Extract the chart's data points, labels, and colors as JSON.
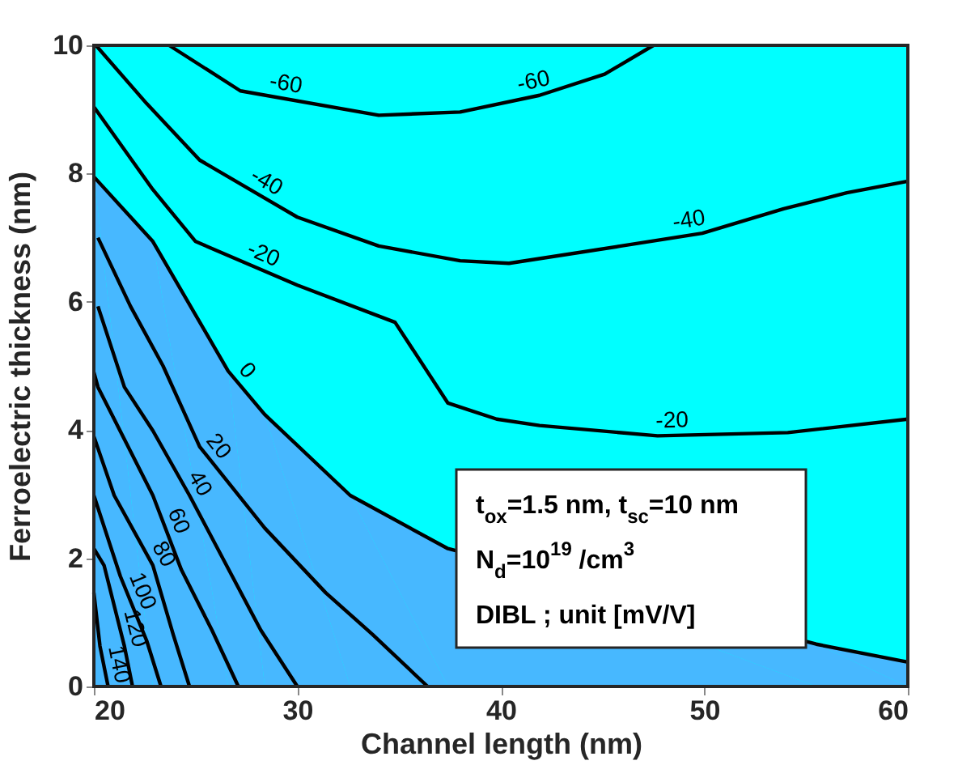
{
  "chart_data": {
    "type": "line",
    "xlabel": "Channel length (nm)",
    "ylabel": "Ferroelectric thickness (nm)",
    "xlim": [
      20,
      60
    ],
    "ylim": [
      0,
      10
    ],
    "xticks": [
      20,
      30,
      40,
      50,
      60
    ],
    "yticks": [
      0,
      2,
      4,
      6,
      8,
      10
    ],
    "marker": "none",
    "line_style": "solid",
    "bands": [
      {
        "axis": "y",
        "from": 0,
        "to": 10,
        "color": "#00ffff"
      }
    ],
    "series": [
      {
        "name": "-60",
        "color": "#000000",
        "x": [
          23.7,
          27.2,
          34.0,
          38.0,
          41.9,
          45.1,
          47.5
        ],
        "values": [
          10,
          9.29,
          8.91,
          8.96,
          9.22,
          9.55,
          10
        ]
      },
      {
        "name": "-40",
        "color": "#000000",
        "x": [
          20.1,
          22.6,
          25.2,
          30.0,
          34.0,
          38.0,
          40.4,
          45.9,
          49.9,
          53.9,
          57.0,
          60
        ],
        "values": [
          10,
          9.09,
          8.21,
          7.32,
          6.87,
          6.64,
          6.6,
          6.87,
          7.07,
          7.45,
          7.7,
          7.88
        ]
      },
      {
        "name": "-20",
        "color": "#000000",
        "x": [
          20,
          22.9,
          25.0,
          30,
          34.8,
          37.4,
          39.8,
          41.9,
          47.7,
          54.1,
          60
        ],
        "values": [
          9.04,
          7.75,
          6.94,
          6.26,
          5.68,
          4.42,
          4.17,
          4.07,
          3.91,
          3.96,
          4.17
        ]
      },
      {
        "name": "0",
        "type": "area",
        "color": "#47b8ff",
        "x": [
          20,
          22.9,
          26.6,
          28.4,
          32.6,
          37.4,
          55.5,
          60
        ],
        "values": [
          7.95,
          6.94,
          4.92,
          4.24,
          2.98,
          2.15,
          0.66,
          0.38
        ]
      },
      {
        "name": "20",
        "color": "#000000",
        "x": [
          20.2,
          21.8,
          23.4,
          25.2,
          28.4,
          31.4,
          33.7,
          36.4
        ],
        "values": [
          7.0,
          5.93,
          5.0,
          3.74,
          2.47,
          1.46,
          0.81,
          0
        ]
      },
      {
        "name": "40",
        "color": "#000000",
        "x": [
          20.2,
          21.5,
          22.9,
          24.7,
          26.8,
          28.2,
          30
        ],
        "values": [
          5.93,
          4.67,
          3.99,
          2.98,
          1.72,
          0.88,
          0
        ]
      },
      {
        "name": "60",
        "color": "#000000",
        "x": [
          20,
          20.2,
          22.9,
          24.3,
          25.8,
          27.1
        ],
        "values": [
          4.9,
          4.67,
          2.98,
          1.82,
          0.88,
          0
        ]
      },
      {
        "name": "80",
        "color": "#000000",
        "x": [
          20,
          21.0,
          22.9,
          23.9,
          24.7
        ],
        "values": [
          3.9,
          2.98,
          1.89,
          0.81,
          0
        ]
      },
      {
        "name": "100",
        "color": "#000000",
        "x": [
          20,
          21.3,
          22.6,
          23.3
        ],
        "values": [
          2.98,
          1.72,
          0.71,
          0
        ]
      },
      {
        "name": "120",
        "color": "#000000",
        "x": [
          20,
          20.5,
          21.5,
          21.9
        ],
        "values": [
          2.15,
          1.89,
          0.63,
          0
        ]
      },
      {
        "name": "140",
        "color": "#000000",
        "x": [
          20,
          20.3,
          20.7
        ],
        "values": [
          1.46,
          0.63,
          0
        ]
      }
    ],
    "annotations": [
      "t$_{ox}$=1.5 nm, t$_{sc}$=10 nm",
      "N$_{d}$=10$^{19}$ /cm$^{3}$",
      "DIBL ; unit [mV/V]"
    ]
  }
}
